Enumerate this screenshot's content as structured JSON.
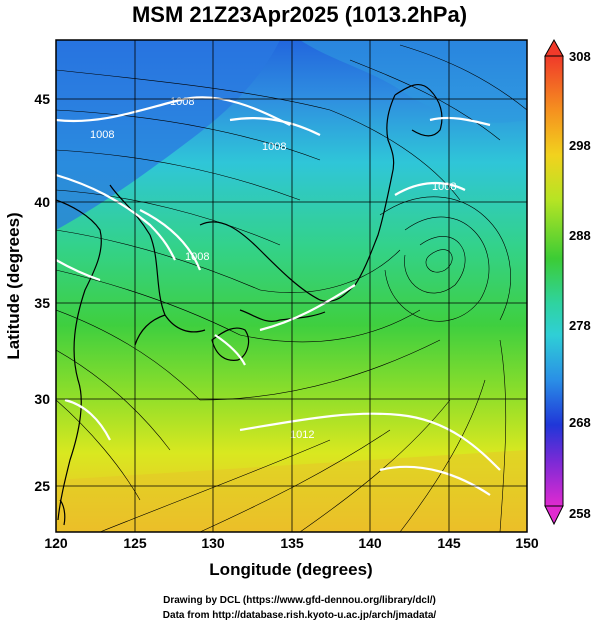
{
  "title": "MSM 21Z23Apr2025 (1013.2hPa)",
  "xlabel": "Longitude (degrees)",
  "ylabel": "Latitude  (degrees)",
  "x_ticks": [
    "120",
    "125",
    "130",
    "135",
    "140",
    "145",
    "150"
  ],
  "y_ticks": [
    "25",
    "30",
    "35",
    "40",
    "45"
  ],
  "colorbar_ticks": [
    "308",
    "298",
    "288",
    "278",
    "268",
    "258"
  ],
  "contour_labels": [
    "1008",
    "1008",
    "1008",
    "1008",
    "1008",
    "1012"
  ],
  "credit_line1": "Drawing by DCL (https://www.gfd-dennou.org/library/dcl/)",
  "credit_line2": "Data from http://database.rish.kyoto-u.ac.jp/arch/jmadata/",
  "colors": {
    "cold": "#2e7be0",
    "cool": "#2fd3d0",
    "mild": "#3fcf3f",
    "warm": "#d9e820",
    "hot": "#f3b52a",
    "contour": "#ffffff",
    "streamline": "#000000"
  },
  "chart_data": {
    "type": "heatmap",
    "variable": "temperature (K) with wind streamlines and pressure contours",
    "level": "1013.2hPa",
    "valid_time": "21Z23Apr2025",
    "x_range": [
      120,
      150
    ],
    "y_range": [
      22.5,
      47.8
    ],
    "colorbar_range": [
      258,
      308
    ],
    "colorbar_ticks": [
      308,
      298,
      288,
      278,
      268,
      258
    ],
    "contour_values": [
      1008,
      1012
    ],
    "low_center": {
      "lon": 143.5,
      "lat": 37.5
    }
  }
}
